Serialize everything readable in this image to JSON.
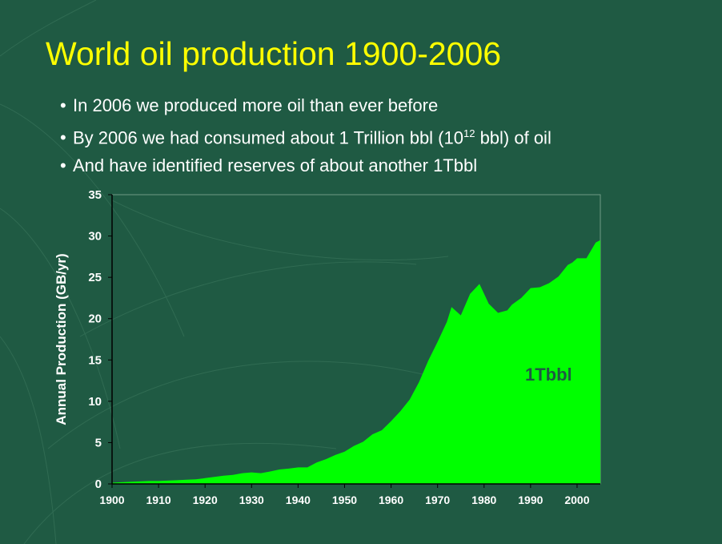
{
  "slide": {
    "title": "World oil production 1900-2006",
    "bullets": [
      {
        "text": "In 2006 we produced more oil than ever before"
      },
      {
        "pre": "By 2006 we had consumed about 1 Trillion bbl (10",
        "sup": "12",
        "post": " bbl) of oil"
      },
      {
        "text": "And have identified reserves of about another 1Tbbl"
      }
    ],
    "bullet_glyph": "•"
  },
  "colors": {
    "background": "#1f5a43",
    "title": "#ffff00",
    "fill": "#00ff00",
    "annotation": "#1f5a43",
    "text": "#ffffff"
  },
  "chart_data": {
    "type": "area",
    "xlabel": "",
    "ylabel": "Annual Production (GB/yr)",
    "xlim": [
      1900,
      2005
    ],
    "ylim": [
      0,
      35
    ],
    "xticks": [
      1900,
      1910,
      1920,
      1930,
      1940,
      1950,
      1960,
      1970,
      1980,
      1990,
      2000
    ],
    "yticks": [
      0,
      5,
      10,
      15,
      20,
      25,
      30,
      35
    ],
    "grid": false,
    "annotation": "1Tbbl",
    "x": [
      1900,
      1902,
      1904,
      1906,
      1908,
      1910,
      1912,
      1914,
      1916,
      1918,
      1920,
      1922,
      1924,
      1926,
      1928,
      1930,
      1932,
      1934,
      1936,
      1938,
      1940,
      1942,
      1944,
      1946,
      1948,
      1950,
      1952,
      1954,
      1956,
      1958,
      1960,
      1962,
      1964,
      1966,
      1968,
      1970,
      1972,
      1973,
      1975,
      1977,
      1979,
      1981,
      1983,
      1985,
      1986,
      1988,
      1990,
      1992,
      1994,
      1996,
      1998,
      1999,
      2000,
      2002,
      2004,
      2005
    ],
    "y": [
      0.15,
      0.2,
      0.25,
      0.3,
      0.35,
      0.35,
      0.4,
      0.45,
      0.5,
      0.55,
      0.7,
      0.85,
      1.0,
      1.1,
      1.3,
      1.4,
      1.3,
      1.5,
      1.75,
      1.85,
      2.0,
      2.0,
      2.6,
      3.0,
      3.5,
      3.9,
      4.6,
      5.1,
      6.0,
      6.5,
      7.6,
      8.8,
      10.2,
      12.3,
      14.9,
      17.2,
      19.6,
      21.4,
      20.4,
      23.0,
      24.2,
      21.8,
      20.7,
      21.0,
      21.7,
      22.5,
      23.7,
      23.8,
      24.3,
      25.1,
      26.5,
      26.8,
      27.3,
      27.3,
      29.2,
      29.5
    ]
  }
}
